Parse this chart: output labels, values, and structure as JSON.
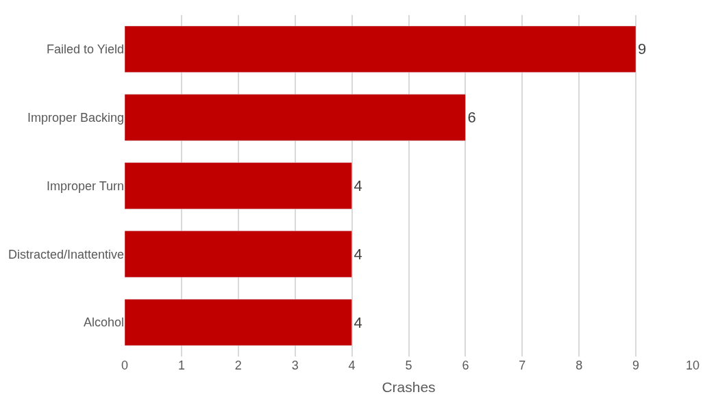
{
  "chart_data": {
    "type": "bar",
    "orientation": "horizontal",
    "xlabel": "Crashes",
    "categories": [
      "Failed to Yield",
      "Improper Backing",
      "Improper Turn",
      "Distracted/Inattentive",
      "Alcohol"
    ],
    "values": [
      9,
      6,
      4,
      4,
      4
    ],
    "color": "#c00000",
    "xlim": [
      0,
      10
    ],
    "xticks": [
      0,
      1,
      2,
      3,
      4,
      5,
      6,
      7,
      8,
      9,
      10
    ],
    "grid": "x",
    "data_labels": true,
    "legend": false
  }
}
